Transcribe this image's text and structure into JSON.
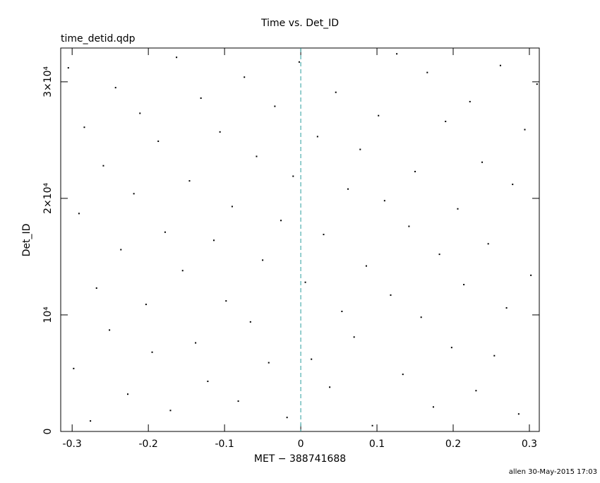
{
  "chart_data": {
    "type": "scatter",
    "title": "Time vs. Det_ID",
    "subtitle": "time_detid.qdp",
    "x_label": "MET − 388741688",
    "y_label": "Det_ID",
    "footer": "allen 30-May-2015 17:03",
    "color": "#000000",
    "vline": {
      "x": 0,
      "color": "#2a9d9d"
    },
    "xlim": [
      -0.315,
      0.313
    ],
    "ylim": [
      0,
      32900
    ],
    "xticks": [
      -0.3,
      -0.2,
      -0.1,
      0,
      0.1,
      0.2,
      0.3
    ],
    "yticks": [
      0,
      {
        "value": 10000,
        "label": "10⁴"
      },
      {
        "value": 20000,
        "label": "2×10⁴"
      },
      {
        "value": 30000,
        "label": "3×10⁴"
      }
    ],
    "x": [
      -0.305,
      -0.298,
      -0.291,
      -0.284,
      -0.276,
      -0.268,
      -0.259,
      -0.251,
      -0.243,
      -0.236,
      -0.227,
      -0.219,
      -0.211,
      -0.203,
      -0.195,
      -0.187,
      -0.178,
      -0.171,
      -0.163,
      -0.155,
      -0.146,
      -0.138,
      -0.131,
      -0.122,
      -0.114,
      -0.106,
      -0.098,
      -0.09,
      -0.082,
      -0.074,
      -0.066,
      -0.058,
      -0.05,
      -0.042,
      -0.034,
      -0.026,
      -0.018,
      -0.01,
      -0.002,
      0.006,
      0.014,
      0.022,
      0.03,
      0.038,
      0.046,
      0.054,
      0.062,
      0.07,
      0.078,
      0.086,
      0.094,
      0.102,
      0.11,
      0.118,
      0.126,
      0.134,
      0.142,
      0.15,
      0.158,
      0.166,
      0.174,
      0.182,
      0.19,
      0.198,
      0.206,
      0.214,
      0.222,
      0.23,
      0.238,
      0.246,
      0.254,
      0.262,
      0.27,
      0.278,
      0.286,
      0.294,
      0.302,
      0.31
    ],
    "values": [
      31200,
      5400,
      18700,
      26100,
      900,
      12300,
      22800,
      8700,
      29500,
      15600,
      3200,
      20400,
      27300,
      10900,
      6800,
      24900,
      17100,
      1800,
      32100,
      13800,
      21500,
      7600,
      28600,
      4300,
      16400,
      25700,
      11200,
      19300,
      2600,
      30400,
      9400,
      23600,
      14700,
      5900,
      27900,
      18100,
      1200,
      21900,
      31700,
      12800,
      6200,
      25300,
      16900,
      3800,
      29100,
      10300,
      20800,
      8100,
      24200,
      14200,
      500,
      27100,
      19800,
      11700,
      32400,
      4900,
      17600,
      22300,
      9800,
      30800,
      2100,
      15200,
      26600,
      7200,
      19100,
      12600,
      28300,
      3500,
      23100,
      16100,
      6500,
      31400,
      10600,
      21200,
      1500,
      25900,
      13400,
      29800
    ]
  }
}
